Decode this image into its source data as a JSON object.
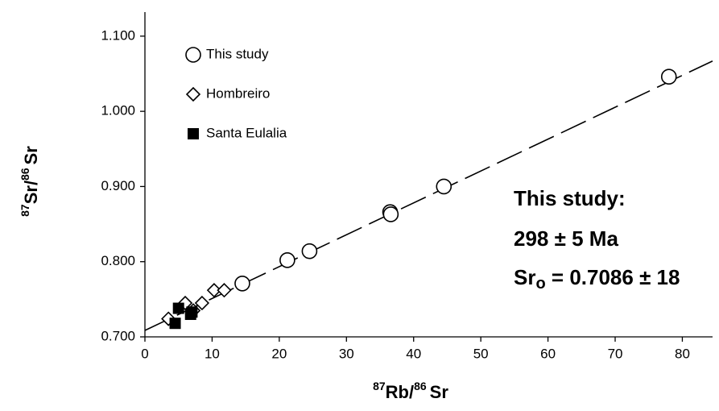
{
  "chart_data": {
    "type": "scatter",
    "x_label": {
      "sup1": "87",
      "main1": "Rb/",
      "sup2": "86",
      "main2": "Sr"
    },
    "y_label": {
      "sup1": "87",
      "main1": "Sr/",
      "sup2": "86",
      "main2": "Sr"
    },
    "xlim": [
      0,
      84.5
    ],
    "ylim": [
      0.7,
      1.132
    ],
    "xticks": [
      0,
      10,
      20,
      30,
      40,
      50,
      60,
      70,
      80
    ],
    "yticks": [
      {
        "value": 0.7,
        "label": "0.700"
      },
      {
        "value": 0.8,
        "label": "0.800"
      },
      {
        "value": 0.9,
        "label": "0.900"
      },
      {
        "value": 1.0,
        "label": "1.000"
      },
      {
        "value": 1.1,
        "label": "1.100"
      }
    ],
    "series": [
      {
        "name": "This study",
        "marker": "circle",
        "color": "#000000",
        "x": [
          14.5,
          21.2,
          24.5,
          36.5,
          36.6,
          44.5,
          78.0
        ],
        "y": [
          0.771,
          0.802,
          0.814,
          0.866,
          0.863,
          0.9,
          1.046
        ]
      },
      {
        "name": "Hombreiro",
        "marker": "diamond",
        "color": "#000000",
        "x": [
          3.5,
          6.0,
          7.2,
          8.5,
          10.3,
          11.8
        ],
        "y": [
          0.724,
          0.745,
          0.735,
          0.745,
          0.762,
          0.762
        ]
      },
      {
        "name": "Santa Eulalia",
        "marker": "square",
        "color": "#000000",
        "x": [
          4.5,
          5.0,
          6.8,
          7.0
        ],
        "y": [
          0.718,
          0.738,
          0.73,
          0.733
        ]
      }
    ],
    "isochron": {
      "x": [
        0,
        84.5
      ],
      "y": [
        0.7086,
        1.0669
      ]
    },
    "annotation": {
      "line1": "This study:",
      "line2": "298 ± 5 Ma",
      "line3_main": "Sr",
      "line3_sub": "o",
      "line3_rest": " = 0.7086 ± 18"
    }
  }
}
